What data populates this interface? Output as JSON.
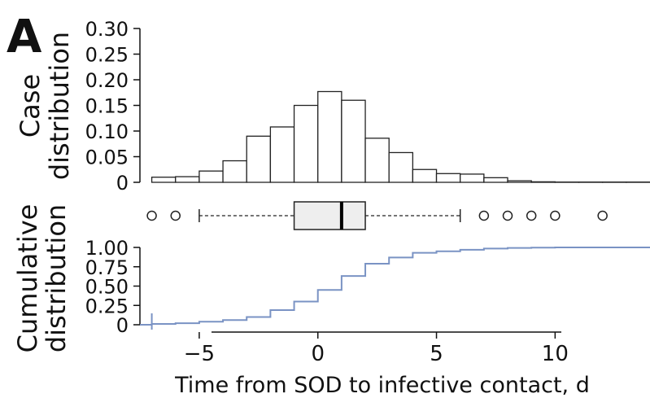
{
  "panel_label": "A",
  "chart_data": [
    {
      "type": "bar",
      "panel": "histogram",
      "ylabel_lines": [
        "Case",
        "distribution"
      ],
      "ylim": [
        0,
        0.3
      ],
      "yticks": [
        0,
        0.05,
        0.1,
        0.15,
        0.2,
        0.25,
        0.3
      ],
      "ytick_labels": [
        "0",
        "0.05",
        "0.10",
        "0.15",
        "0.20",
        "0.25",
        "0.30"
      ],
      "xlim": [
        -7.5,
        14
      ],
      "bins": [
        {
          "x0": -7,
          "x1": -6,
          "value": 0.01
        },
        {
          "x0": -6,
          "x1": -5,
          "value": 0.011
        },
        {
          "x0": -5,
          "x1": -4,
          "value": 0.022
        },
        {
          "x0": -4,
          "x1": -3,
          "value": 0.042
        },
        {
          "x0": -3,
          "x1": -2,
          "value": 0.09
        },
        {
          "x0": -2,
          "x1": -1,
          "value": 0.108
        },
        {
          "x0": -1,
          "x1": 0,
          "value": 0.15
        },
        {
          "x0": 0,
          "x1": 1,
          "value": 0.177
        },
        {
          "x0": 1,
          "x1": 2,
          "value": 0.16
        },
        {
          "x0": 2,
          "x1": 3,
          "value": 0.086
        },
        {
          "x0": 3,
          "x1": 4,
          "value": 0.058
        },
        {
          "x0": 4,
          "x1": 5,
          "value": 0.025
        },
        {
          "x0": 5,
          "x1": 6,
          "value": 0.017
        },
        {
          "x0": 6,
          "x1": 7,
          "value": 0.016
        },
        {
          "x0": 7,
          "x1": 8,
          "value": 0.009
        },
        {
          "x0": 8,
          "x1": 9,
          "value": 0.003
        },
        {
          "x0": 9,
          "x1": 10,
          "value": 0.001
        },
        {
          "x0": 10,
          "x1": 11,
          "value": 0.0005
        },
        {
          "x0": 11,
          "x1": 12,
          "value": 0.0005
        },
        {
          "x0": 12,
          "x1": 13,
          "value": 0.0005
        },
        {
          "x0": 13,
          "x1": 14,
          "value": 0.0005
        }
      ]
    },
    {
      "type": "box",
      "panel": "boxplot",
      "whisker_low": -5,
      "q1": -1,
      "median": 1,
      "q3": 2,
      "whisker_high": 6,
      "outliers": [
        -7,
        -6,
        7,
        8,
        9,
        10,
        12
      ]
    },
    {
      "type": "line",
      "panel": "cumulative",
      "step": true,
      "ylabel_lines": [
        "Cumulative",
        "distribution"
      ],
      "xlabel": "Time from SOD to infective contact, d",
      "ylim": [
        0,
        1
      ],
      "yticks": [
        0,
        0.25,
        0.5,
        0.75,
        1
      ],
      "ytick_labels": [
        "0",
        "0.25",
        "0.50",
        "0.75",
        "1.00"
      ],
      "xticks": [
        -5,
        0,
        5,
        10
      ],
      "xtick_labels": [
        "−5",
        "0",
        "5",
        "10"
      ],
      "xlim": [
        -7.5,
        14
      ],
      "color": "#7a93c4",
      "x": [
        -7.5,
        -7,
        -6,
        -5,
        -4,
        -3,
        -2,
        -1,
        0,
        1,
        2,
        3,
        4,
        5,
        6,
        7,
        8,
        9,
        10,
        14
      ],
      "y": [
        0,
        0.01,
        0.02,
        0.04,
        0.06,
        0.1,
        0.19,
        0.3,
        0.45,
        0.63,
        0.79,
        0.87,
        0.93,
        0.95,
        0.97,
        0.985,
        0.993,
        0.997,
        1.0,
        1.0
      ]
    }
  ]
}
